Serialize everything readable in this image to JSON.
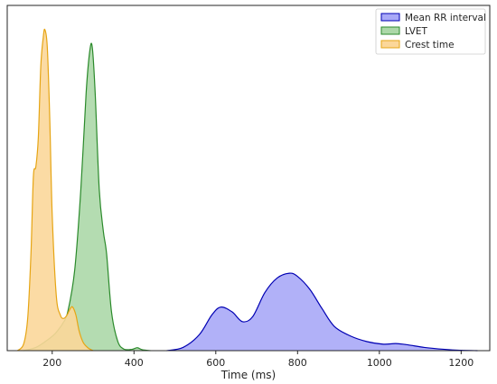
{
  "chart_data": {
    "type": "area",
    "title": "",
    "xlabel": "Time (ms)",
    "ylabel": "",
    "xlim": [
      90,
      1270
    ],
    "ylim": [
      0,
      1.07
    ],
    "xticks": [
      200,
      400,
      600,
      800,
      1000,
      1200
    ],
    "grid": false,
    "legend": "top-right",
    "series": [
      {
        "name": "Mean RR interval",
        "color": "#0000b3",
        "fill": "#a9a9f7",
        "x": [
          480,
          520,
          560,
          590,
          612,
          640,
          665,
          690,
          720,
          750,
          780,
          800,
          830,
          860,
          890,
          930,
          970,
          1010,
          1040,
          1070,
          1110,
          1160,
          1200,
          1240
        ],
        "y": [
          0.0,
          0.01,
          0.05,
          0.11,
          0.135,
          0.12,
          0.09,
          0.105,
          0.18,
          0.225,
          0.24,
          0.23,
          0.19,
          0.13,
          0.075,
          0.045,
          0.028,
          0.02,
          0.022,
          0.018,
          0.01,
          0.004,
          0.001,
          0.0
        ]
      },
      {
        "name": "LVET",
        "color": "#2b8a2b",
        "fill": "#acd8a8",
        "x": [
          130,
          160,
          185,
          205,
          218,
          226,
          238,
          255,
          270,
          283,
          292,
          298,
          305,
          315,
          325,
          333,
          345,
          360,
          375,
          395,
          408,
          420,
          440
        ],
        "y": [
          0.0,
          0.01,
          0.03,
          0.05,
          0.07,
          0.085,
          0.12,
          0.25,
          0.5,
          0.8,
          0.93,
          0.94,
          0.8,
          0.5,
          0.37,
          0.3,
          0.12,
          0.03,
          0.005,
          0.004,
          0.009,
          0.003,
          0.0
        ]
      },
      {
        "name": "Crest time",
        "color": "#e6a514",
        "fill": "#fbd79a",
        "x": [
          115,
          130,
          140,
          148,
          154,
          160,
          166,
          172,
          178,
          182,
          188,
          194,
          200,
          210,
          220,
          228,
          236,
          244,
          250,
          258,
          266,
          276,
          288,
          300
        ],
        "y": [
          0.0,
          0.02,
          0.1,
          0.3,
          0.54,
          0.57,
          0.66,
          0.88,
          0.97,
          0.995,
          0.94,
          0.72,
          0.42,
          0.17,
          0.11,
          0.1,
          0.11,
          0.13,
          0.135,
          0.11,
          0.06,
          0.025,
          0.008,
          0.0
        ]
      }
    ]
  }
}
